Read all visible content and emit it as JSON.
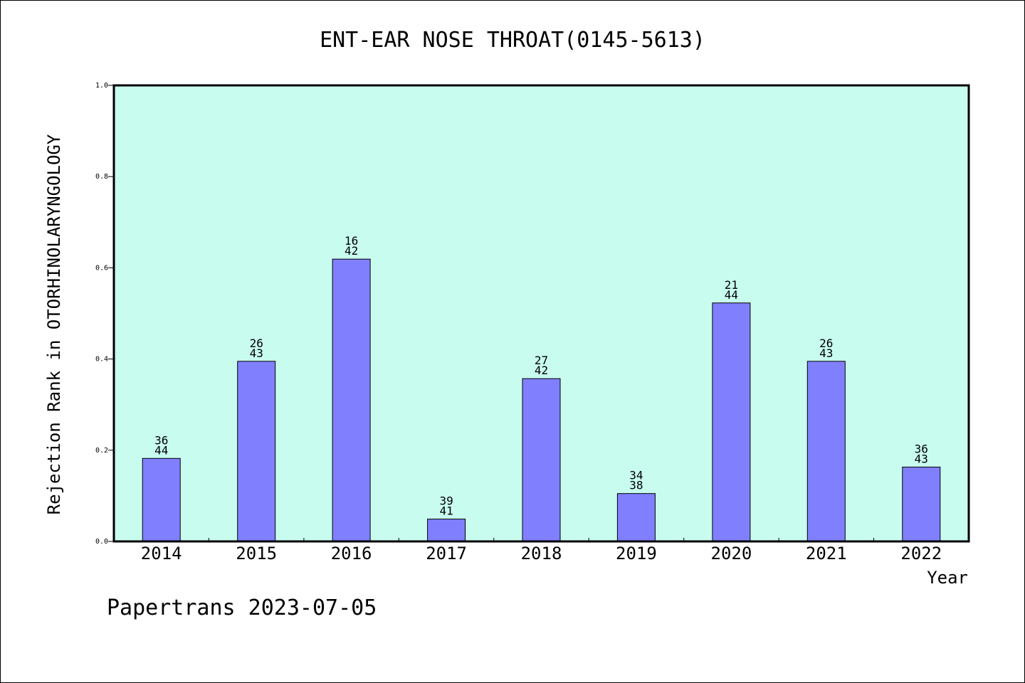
{
  "chart_data": {
    "type": "bar",
    "title": "ENT-EAR NOSE THROAT(0145-5613)",
    "xlabel": "Year",
    "ylabel": "Rejection Rank in OTORHINOLARYNGOLOGY",
    "categories": [
      "2014",
      "2015",
      "2016",
      "2017",
      "2018",
      "2019",
      "2020",
      "2021",
      "2022"
    ],
    "values": [
      0.182,
      0.395,
      0.619,
      0.049,
      0.357,
      0.105,
      0.523,
      0.395,
      0.163
    ],
    "ranks": [
      "36",
      "26",
      "16",
      "39",
      "27",
      "34",
      "21",
      "26",
      "36"
    ],
    "totals": [
      "44",
      "43",
      "42",
      "41",
      "42",
      "38",
      "44",
      "43",
      "43"
    ],
    "ylim": [
      0,
      1.0
    ],
    "yticks": [
      "0.0",
      "0.2",
      "0.4",
      "0.6",
      "0.8",
      "1.0"
    ],
    "grid": false,
    "colors": {
      "plot_background": "#c8fcee",
      "bar_fill": "#8080ff",
      "bar_stroke": "#000000"
    }
  },
  "footer": "Papertrans 2023-07-05"
}
